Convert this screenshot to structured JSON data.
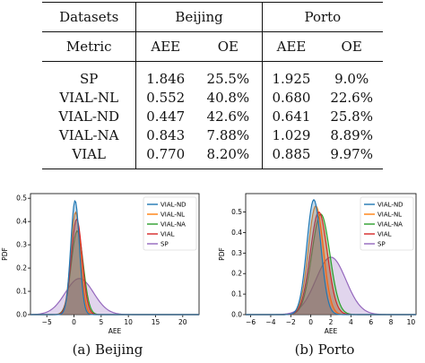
{
  "table": {
    "header_datasets": "Datasets",
    "header_beijing": "Beijing",
    "header_porto": "Porto",
    "header_metric": "Metric",
    "sub": [
      "AEE",
      "OE",
      "AEE",
      "OE"
    ],
    "rows": [
      {
        "method": "SP",
        "values": [
          "1.846",
          "25.5%",
          "1.925",
          "9.0%"
        ]
      },
      {
        "method": "VIAL-NL",
        "values": [
          "0.552",
          "40.8%",
          "0.680",
          "22.6%"
        ]
      },
      {
        "method": "VIAL-ND",
        "values": [
          "0.447",
          "42.6%",
          "0.641",
          "25.8%"
        ]
      },
      {
        "method": "VIAL-NA",
        "values": [
          "0.843",
          "7.88%",
          "1.029",
          "8.89%"
        ]
      },
      {
        "method": "VIAL",
        "values": [
          "0.770",
          "8.20%",
          "0.885",
          "9.97%"
        ]
      }
    ]
  },
  "captions": [
    "(a) Beijing",
    "(b) Porto"
  ],
  "chart_data": [
    {
      "type": "area",
      "subtype": "density",
      "xlabel": "AEE",
      "ylabel": "PDF",
      "xlim": [
        -8,
        23
      ],
      "ylim": [
        0,
        0.52
      ],
      "xticks": [
        -5,
        0,
        5,
        10,
        15,
        20
      ],
      "yticks": [
        0.0,
        0.1,
        0.2,
        0.3,
        0.4,
        0.5
      ],
      "legend_position": "top-right",
      "series": [
        {
          "name": "VIAL-ND",
          "color": "#1f77b4",
          "peak_x": 0.2,
          "peak_y": 0.49,
          "sigma": 0.8
        },
        {
          "name": "VIAL-NL",
          "color": "#ff7f0e",
          "peak_x": 0.3,
          "peak_y": 0.44,
          "sigma": 0.9
        },
        {
          "name": "VIAL-NA",
          "color": "#2ca02c",
          "peak_x": 0.6,
          "peak_y": 0.36,
          "sigma": 1.1
        },
        {
          "name": "VIAL",
          "color": "#d62728",
          "peak_x": 0.5,
          "peak_y": 0.41,
          "sigma": 1.0
        },
        {
          "name": "SP",
          "color": "#9467bd",
          "peak_x": 1.0,
          "peak_y": 0.155,
          "sigma": 2.6
        }
      ]
    },
    {
      "type": "area",
      "subtype": "density",
      "xlabel": "AEE",
      "ylabel": "PDF",
      "xlim": [
        -6.5,
        10.5
      ],
      "ylim": [
        0,
        0.59
      ],
      "xticks": [
        -6,
        -4,
        -2,
        0,
        2,
        4,
        6,
        8,
        10
      ],
      "yticks": [
        0.0,
        0.1,
        0.2,
        0.3,
        0.4,
        0.5
      ],
      "legend_position": "top-right",
      "series": [
        {
          "name": "VIAL-ND",
          "color": "#1f77b4",
          "peak_x": 0.3,
          "peak_y": 0.56,
          "sigma": 0.7
        },
        {
          "name": "VIAL-NL",
          "color": "#ff7f0e",
          "peak_x": 0.5,
          "peak_y": 0.53,
          "sigma": 0.75
        },
        {
          "name": "VIAL-NA",
          "color": "#2ca02c",
          "peak_x": 1.0,
          "peak_y": 0.49,
          "sigma": 0.9
        },
        {
          "name": "VIAL",
          "color": "#d62728",
          "peak_x": 0.8,
          "peak_y": 0.5,
          "sigma": 0.85
        },
        {
          "name": "SP",
          "color": "#9467bd",
          "peak_x": 2.0,
          "peak_y": 0.28,
          "sigma": 1.5
        }
      ]
    }
  ]
}
